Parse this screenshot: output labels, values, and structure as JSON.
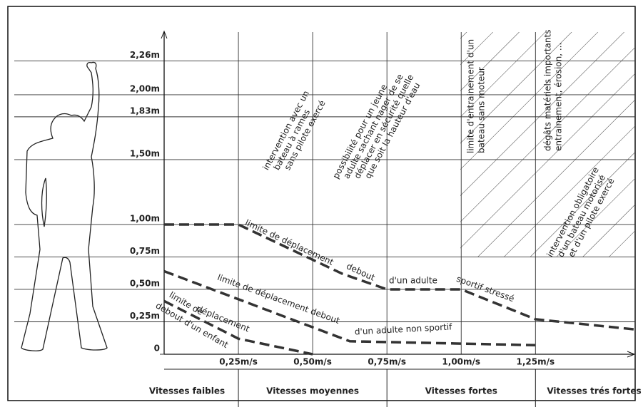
{
  "chart_data": {
    "type": "line",
    "xlim": [
      0,
      1.6
    ],
    "ylim": [
      0,
      2.45
    ],
    "xticks": [
      {
        "value": 0.25,
        "label": "0,25m/s"
      },
      {
        "value": 0.5,
        "label": "0,50m/s"
      },
      {
        "value": 0.75,
        "label": "0,75m/s"
      },
      {
        "value": 1.0,
        "label": "1,00m/s"
      },
      {
        "value": 1.25,
        "label": "1,25m/s"
      }
    ],
    "yticks": [
      0,
      {
        "value": 0.25,
        "label": "0,25m"
      },
      {
        "value": 0.5,
        "label": "0,50m"
      },
      {
        "value": 0.75,
        "label": "0,75m"
      },
      {
        "value": 1.0,
        "label": "1,00m"
      },
      {
        "value": 1.5,
        "label": "1,50m"
      },
      {
        "value": 1.83,
        "label": "1,83m"
      },
      {
        "value": 2.0,
        "label": "2,00m"
      },
      {
        "value": 2.26,
        "label": "2,26m"
      }
    ],
    "grid": true,
    "series": [
      {
        "color": "#333333",
        "x": [
          0,
          0.25,
          0.6,
          0.75,
          1.0,
          1.25,
          1.59
        ],
        "values": [
          1.0,
          1.0,
          0.62,
          0.5,
          0.5,
          0.27,
          0.19
        ]
      },
      {
        "color": "#333333",
        "x": [
          0,
          0.625,
          1.25
        ],
        "values": [
          0.64,
          0.1,
          0.07
        ]
      },
      {
        "color": "#333333",
        "x": [
          0,
          0.25,
          0.5
        ],
        "values": [
          0.41,
          0.12,
          0
        ]
      }
    ],
    "annotations": [
      "limite de déplacement",
      "debout",
      "d'un adulte",
      "sportif stressé",
      "limite de déplacement debout",
      "d'un adulte non sportif",
      "limite de",
      "déplacement",
      "debout d'un enfant"
    ],
    "zone_notes": [
      {
        "lines": [
          "intervention avec un",
          "bateau à rames",
          "sans pilote exercé"
        ]
      },
      {
        "lines": [
          "possibilité pour un jeune",
          "adulte sachant nager de se",
          "déplacer en sécurité quelle",
          "que soit la hauteur d'eau"
        ]
      },
      {
        "lines": [
          "limite d'entrainement d'un",
          "bateau sans moteur"
        ]
      },
      {
        "lines": [
          "dégâts matériels importants",
          "entrainement, érosion, ..."
        ]
      },
      {
        "lines": [
          "intervention obligatoire",
          "d'un bateau motorisé",
          "et d'un pilote exercé"
        ]
      }
    ],
    "speed_bands": [
      {
        "label": "Vitesses faibles",
        "range": [
          0,
          0.25
        ]
      },
      {
        "label": "Vitesses moyennes",
        "range": [
          0.25,
          0.75
        ]
      },
      {
        "label": "Vitesses fortes",
        "range": [
          0.75,
          1.25
        ]
      },
      {
        "label": "Vitesses trés fortes",
        "range": [
          1.25,
          1.6
        ]
      }
    ]
  }
}
